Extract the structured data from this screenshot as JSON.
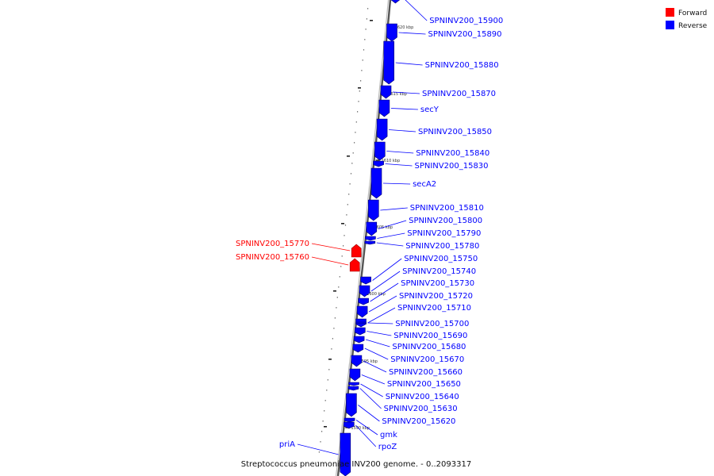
{
  "caption": "Streptococcus pneumoniae INV200 genome. - 0..2093317",
  "legend": [
    {
      "label": "Forward",
      "color": "#ff0000"
    },
    {
      "label": "Reverse",
      "color": "#0000ff"
    }
  ],
  "colors": {
    "forward": "#ff0000",
    "reverse": "#0000ff",
    "backbone": "#888888"
  },
  "ticks": [
    "1620 kbp",
    "1615 kbp",
    "1610 kbp",
    "1605 kbp",
    "1600 kbp",
    "1595 kbp",
    "1590 kbp"
  ],
  "genes": [
    {
      "name": "SPNINV200_15900",
      "strand": "reverse"
    },
    {
      "name": "SPNINV200_15890",
      "strand": "reverse"
    },
    {
      "name": "SPNINV200_15880",
      "strand": "reverse"
    },
    {
      "name": "SPNINV200_15870",
      "strand": "reverse"
    },
    {
      "name": "secY",
      "strand": "reverse"
    },
    {
      "name": "SPNINV200_15850",
      "strand": "reverse"
    },
    {
      "name": "SPNINV200_15840",
      "strand": "reverse"
    },
    {
      "name": "SPNINV200_15830",
      "strand": "reverse"
    },
    {
      "name": "secA2",
      "strand": "reverse"
    },
    {
      "name": "SPNINV200_15810",
      "strand": "reverse"
    },
    {
      "name": "SPNINV200_15800",
      "strand": "reverse"
    },
    {
      "name": "SPNINV200_15790",
      "strand": "reverse"
    },
    {
      "name": "SPNINV200_15780",
      "strand": "reverse"
    },
    {
      "name": "SPNINV200_15770",
      "strand": "forward"
    },
    {
      "name": "SPNINV200_15760",
      "strand": "forward"
    },
    {
      "name": "SPNINV200_15750",
      "strand": "reverse"
    },
    {
      "name": "SPNINV200_15740",
      "strand": "reverse"
    },
    {
      "name": "SPNINV200_15730",
      "strand": "reverse"
    },
    {
      "name": "SPNINV200_15720",
      "strand": "reverse"
    },
    {
      "name": "SPNINV200_15710",
      "strand": "reverse"
    },
    {
      "name": "SPNINV200_15700",
      "strand": "reverse"
    },
    {
      "name": "SPNINV200_15690",
      "strand": "reverse"
    },
    {
      "name": "SPNINV200_15680",
      "strand": "reverse"
    },
    {
      "name": "SPNINV200_15670",
      "strand": "reverse"
    },
    {
      "name": "SPNINV200_15660",
      "strand": "reverse"
    },
    {
      "name": "SPNINV200_15650",
      "strand": "reverse"
    },
    {
      "name": "SPNINV200_15640",
      "strand": "reverse"
    },
    {
      "name": "SPNINV200_15630",
      "strand": "reverse"
    },
    {
      "name": "SPNINV200_15620",
      "strand": "reverse"
    },
    {
      "name": "gmk",
      "strand": "reverse"
    },
    {
      "name": "rpoZ",
      "strand": "reverse"
    },
    {
      "name": "priA",
      "strand": "reverse"
    }
  ]
}
